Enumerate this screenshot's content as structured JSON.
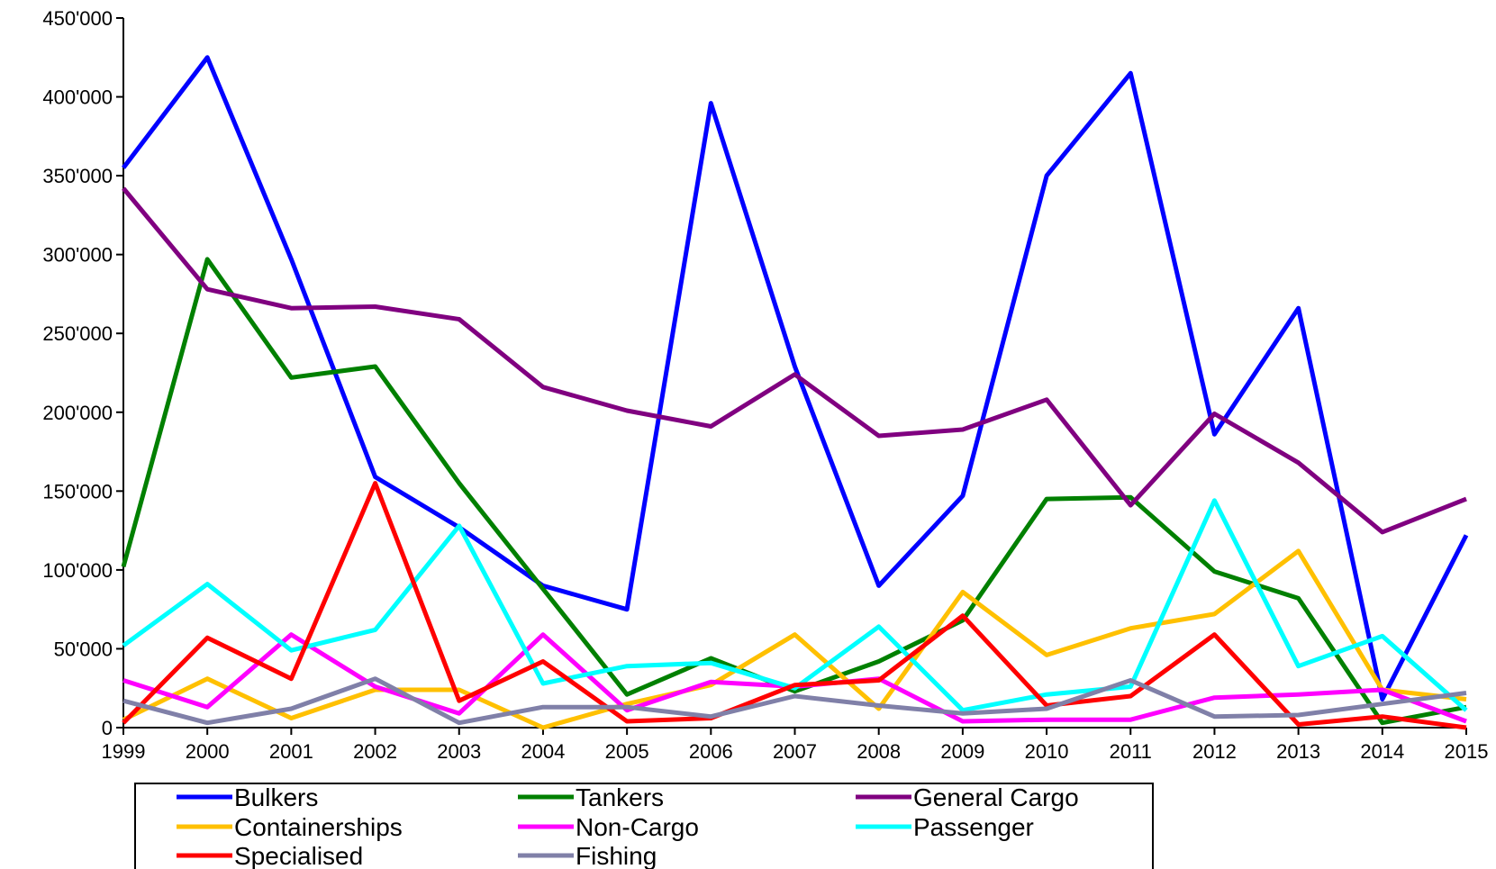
{
  "chart_data": {
    "type": "line",
    "title": "",
    "xlabel": "",
    "ylabel": "",
    "ylim": [
      0,
      450000
    ],
    "yticks": [
      0,
      50000,
      100000,
      150000,
      200000,
      250000,
      300000,
      350000,
      400000,
      450000
    ],
    "ytick_labels": [
      "0",
      "50'000",
      "100'000",
      "150'000",
      "200'000",
      "250'000",
      "300'000",
      "350'000",
      "400'000",
      "450'000"
    ],
    "x": [
      "1999",
      "2000",
      "2001",
      "2002",
      "2003",
      "2004",
      "2005",
      "2006",
      "2007",
      "2008",
      "2009",
      "2010",
      "2011",
      "2012",
      "2013",
      "2014",
      "2015"
    ],
    "grid": false,
    "legend_position": "bottom",
    "series": [
      {
        "name": "Bulkers",
        "color": "#0000FF",
        "values": [
          355000,
          425000,
          297000,
          159000,
          127000,
          90000,
          75000,
          396000,
          229000,
          90000,
          147000,
          350000,
          415000,
          186000,
          266000,
          18000,
          122000
        ]
      },
      {
        "name": "Tankers",
        "color": "#008000",
        "values": [
          102000,
          297000,
          222000,
          229000,
          155000,
          88000,
          21000,
          44000,
          23000,
          42000,
          68000,
          145000,
          146000,
          99000,
          82000,
          3000,
          13000
        ]
      },
      {
        "name": "General Cargo",
        "color": "#800080",
        "values": [
          342000,
          278000,
          266000,
          267000,
          259000,
          216000,
          201000,
          191000,
          224000,
          185000,
          189000,
          208000,
          141000,
          199000,
          168000,
          124000,
          145000
        ]
      },
      {
        "name": "Containerships",
        "color": "#FFC000",
        "values": [
          5000,
          31000,
          6000,
          24000,
          24000,
          0,
          15000,
          27000,
          59000,
          12000,
          86000,
          46000,
          63000,
          72000,
          112000,
          24000,
          18000
        ]
      },
      {
        "name": "Non-Cargo",
        "color": "#FF00FF",
        "values": [
          30000,
          13000,
          59000,
          26000,
          9000,
          59000,
          11000,
          29000,
          26000,
          31000,
          4000,
          5000,
          5000,
          19000,
          21000,
          24000,
          4000
        ]
      },
      {
        "name": "Passenger",
        "color": "#00FFFF",
        "values": [
          52000,
          91000,
          49000,
          62000,
          128000,
          28000,
          39000,
          41000,
          25000,
          64000,
          11000,
          21000,
          26000,
          144000,
          39000,
          58000,
          11000
        ]
      },
      {
        "name": "Specialised",
        "color": "#FF0000",
        "values": [
          3000,
          57000,
          31000,
          155000,
          17000,
          42000,
          4000,
          6000,
          27000,
          30000,
          71000,
          14000,
          20000,
          59000,
          2000,
          7000,
          0
        ]
      },
      {
        "name": "Fishing",
        "color": "#8080A8",
        "values": [
          17000,
          3000,
          12000,
          31000,
          3000,
          13000,
          13000,
          7000,
          20000,
          14000,
          9000,
          12000,
          30000,
          7000,
          8000,
          15000,
          22000
        ]
      }
    ]
  }
}
